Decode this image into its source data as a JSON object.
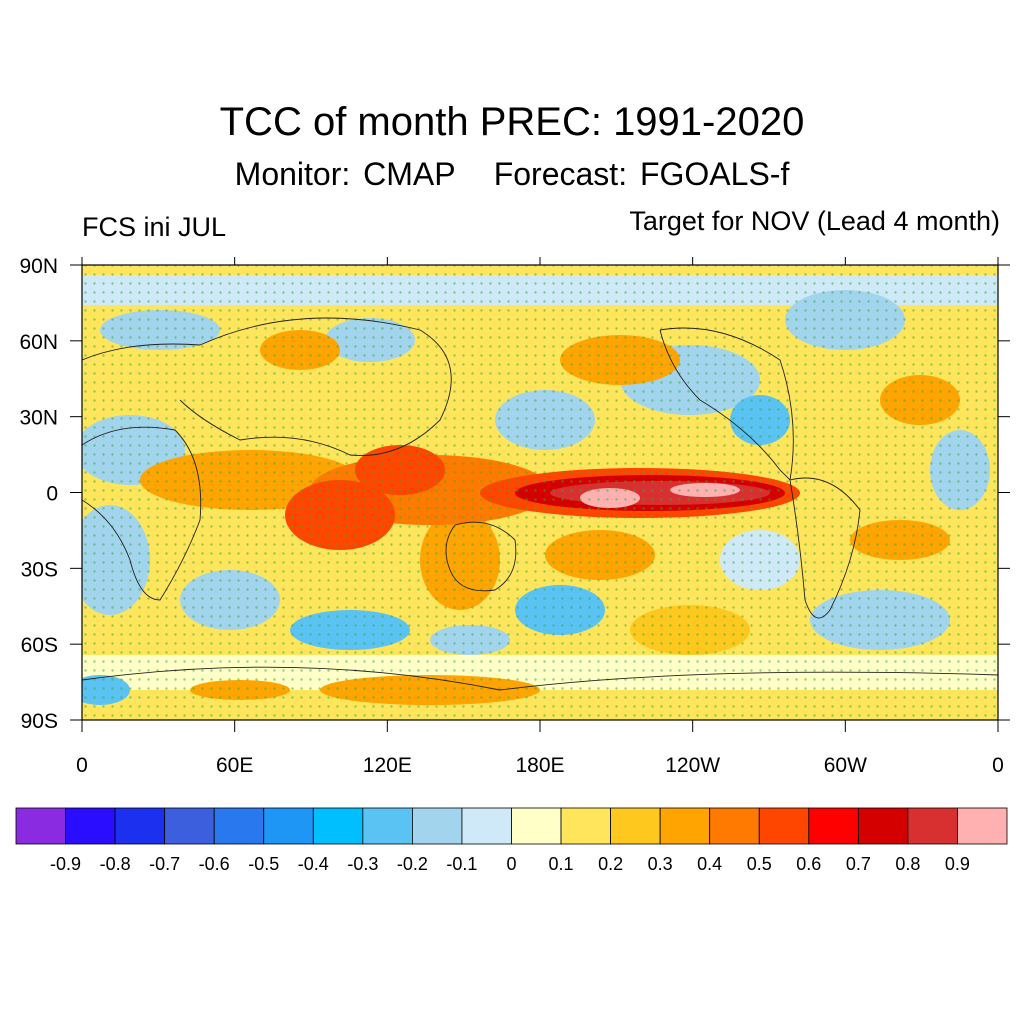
{
  "title": "TCC of month PREC: 1991-2020",
  "subtitle": {
    "monitor": "Monitor: CMAP",
    "forecast": "Forecast: FGOALS-f"
  },
  "left_label": "FCS ini JUL",
  "right_label": "Target for NOV (Lead 4 month)",
  "map": {
    "lat_labels": [
      "90N",
      "60N",
      "30N",
      "0",
      "30S",
      "60S",
      "90S"
    ],
    "lon_labels": [
      "0",
      "60E",
      "120E",
      "180E",
      "120W",
      "60W",
      "0"
    ],
    "projection": "cylindrical-equidistant",
    "lon_range": [
      0,
      360
    ],
    "lat_range": [
      -90,
      90
    ],
    "field": "temporal correlation coefficient (TCC) of monthly precipitation",
    "stippling": "green dots mark significant correlation"
  },
  "colorbar": {
    "labels": [
      "-0.9",
      "-0.8",
      "-0.7",
      "-0.6",
      "-0.5",
      "-0.4",
      "-0.3",
      "-0.2",
      "-0.1",
      "0",
      "0.1",
      "0.2",
      "0.3",
      "0.4",
      "0.5",
      "0.6",
      "0.7",
      "0.8",
      "0.9"
    ],
    "colors": [
      "#8a2be2",
      "#2a0cff",
      "#1c30f0",
      "#3b5fdd",
      "#2a78ee",
      "#1e96f5",
      "#00bfff",
      "#5ac3f3",
      "#a3d4ee",
      "#cfe9f8",
      "#ffffc8",
      "#ffe55c",
      "#ffc81e",
      "#ffa400",
      "#ff7a00",
      "#ff4600",
      "#ff0000",
      "#d40000",
      "#d83030",
      "#ffb0b0"
    ]
  }
}
